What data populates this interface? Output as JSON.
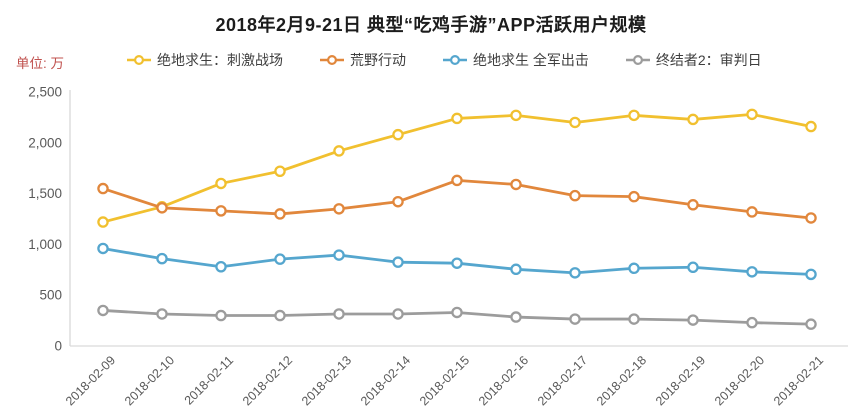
{
  "page": {
    "background": "#ffffff"
  },
  "chart_data": {
    "type": "line",
    "title": "2018年2月9-21日 典型“吃鸡手游”APP活跃用户规模",
    "unit_label": "单位: 万",
    "xlabel": "",
    "ylabel": "",
    "ylim": [
      0,
      2500
    ],
    "y_ticks": [
      "0",
      "500",
      "1,000",
      "1,500",
      "2,000",
      "2,500"
    ],
    "grid": false,
    "legend_position": "top",
    "x": [
      "2018-02-09",
      "2018-02-10",
      "2018-02-11",
      "2018-02-12",
      "2018-02-13",
      "2018-02-14",
      "2018-02-15",
      "2018-02-16",
      "2018-02-17",
      "2018-02-18",
      "2018-02-19",
      "2018-02-20",
      "2018-02-21"
    ],
    "series": [
      {
        "name": "绝地求生：刺激战场",
        "color": "#f1c02f",
        "values": [
          1220,
          1370,
          1600,
          1720,
          1920,
          2080,
          2240,
          2270,
          2200,
          2270,
          2230,
          2280,
          2160
        ]
      },
      {
        "name": "荒野行动",
        "color": "#e1873c",
        "values": [
          1550,
          1360,
          1330,
          1300,
          1350,
          1420,
          1630,
          1590,
          1480,
          1470,
          1390,
          1320,
          1260
        ]
      },
      {
        "name": "绝地求生 全军出击",
        "color": "#55a6ce",
        "values": [
          960,
          860,
          780,
          855,
          895,
          825,
          815,
          755,
          720,
          765,
          775,
          730,
          705
        ]
      },
      {
        "name": "终结者2：审判日",
        "color": "#9c9c9c",
        "values": [
          350,
          315,
          300,
          300,
          315,
          315,
          330,
          285,
          265,
          265,
          255,
          230,
          215
        ]
      }
    ]
  },
  "colors": {
    "axis": "#d9d9d9",
    "tick_text": "#595959",
    "title_text": "#1c1c1c",
    "legend_text": "#3f3f3f",
    "unit_text": "#c0504d",
    "marker_fill": "#ffffff"
  }
}
